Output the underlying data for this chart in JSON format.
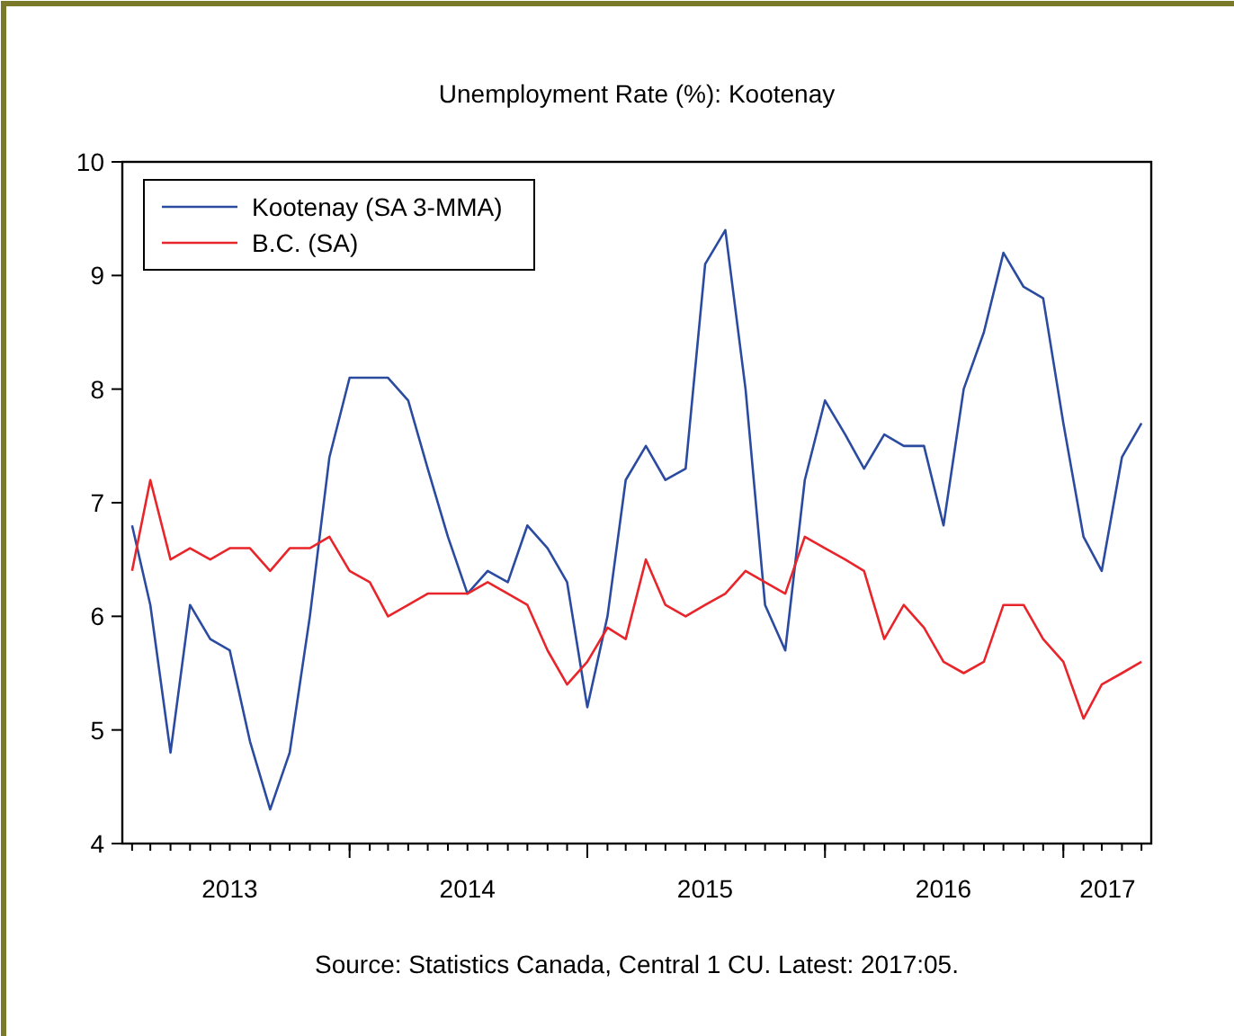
{
  "chart_data": {
    "type": "line",
    "title": "Unemployment Rate (%): Kootenay",
    "annotations": [
      "Source: Statistics Canada, Central 1 CU. Latest: 2017:05."
    ],
    "x": [
      "2013-02",
      "2013-03",
      "2013-04",
      "2013-05",
      "2013-06",
      "2013-07",
      "2013-08",
      "2013-09",
      "2013-10",
      "2013-11",
      "2013-12",
      "2014-01",
      "2014-02",
      "2014-03",
      "2014-04",
      "2014-05",
      "2014-06",
      "2014-07",
      "2014-08",
      "2014-09",
      "2014-10",
      "2014-11",
      "2014-12",
      "2015-01",
      "2015-02",
      "2015-03",
      "2015-04",
      "2015-05",
      "2015-06",
      "2015-07",
      "2015-08",
      "2015-09",
      "2015-10",
      "2015-11",
      "2015-12",
      "2016-01",
      "2016-02",
      "2016-03",
      "2016-04",
      "2016-05",
      "2016-06",
      "2016-07",
      "2016-08",
      "2016-09",
      "2016-10",
      "2016-11",
      "2016-12",
      "2017-01",
      "2017-02",
      "2017-03",
      "2017-04",
      "2017-05"
    ],
    "series": [
      {
        "name": "Kootenay (SA 3-MMA)",
        "color": "#2b4ba0",
        "values": [
          6.8,
          6.1,
          4.8,
          6.1,
          5.8,
          5.7,
          4.9,
          4.3,
          4.8,
          6.0,
          7.4,
          8.1,
          8.1,
          8.1,
          7.9,
          7.3,
          6.7,
          6.2,
          6.4,
          6.3,
          6.8,
          6.6,
          6.3,
          5.2,
          6.0,
          7.2,
          7.5,
          7.2,
          7.3,
          9.1,
          9.4,
          8.0,
          6.1,
          5.7,
          7.2,
          7.9,
          7.6,
          7.3,
          7.6,
          7.5,
          7.5,
          6.8,
          8.0,
          8.5,
          9.2,
          8.9,
          8.8,
          7.7,
          6.7,
          6.4,
          7.4,
          7.7
        ]
      },
      {
        "name": "B.C. (SA)",
        "color": "#e8252a",
        "values": [
          6.4,
          7.2,
          6.5,
          6.6,
          6.5,
          6.6,
          6.6,
          6.4,
          6.6,
          6.6,
          6.7,
          6.4,
          6.3,
          6.0,
          6.1,
          6.2,
          6.2,
          6.2,
          6.3,
          6.2,
          6.1,
          5.7,
          5.4,
          5.6,
          5.9,
          5.8,
          6.5,
          6.1,
          6.0,
          6.1,
          6.2,
          6.4,
          6.3,
          6.2,
          6.7,
          6.6,
          6.5,
          6.4,
          5.8,
          6.1,
          5.9,
          5.6,
          5.5,
          5.6,
          6.1,
          6.1,
          5.8,
          5.6,
          5.1,
          5.4,
          5.5,
          5.6
        ]
      }
    ],
    "xlim": [
      "2013-01-17",
      "2017-05-16"
    ],
    "xticks": [
      {
        "value": "2013-07-01",
        "label": "2013"
      },
      {
        "value": "2014-01-01",
        "label": null
      },
      {
        "value": "2014-07-01",
        "label": "2014"
      },
      {
        "value": "2015-01-01",
        "label": null
      },
      {
        "value": "2015-07-01",
        "label": "2015"
      },
      {
        "value": "2016-01-01",
        "label": null
      },
      {
        "value": "2016-07-01",
        "label": "2016"
      },
      {
        "value": "2017-01-01",
        "label": null
      },
      {
        "value": "2017-03-10",
        "label": "2017"
      }
    ],
    "ylim": [
      4,
      10
    ],
    "yticks": [
      4,
      5,
      6,
      7,
      8,
      9,
      10
    ],
    "grid": false,
    "legend": "top left",
    "line_style": "solid",
    "marker": "none"
  }
}
